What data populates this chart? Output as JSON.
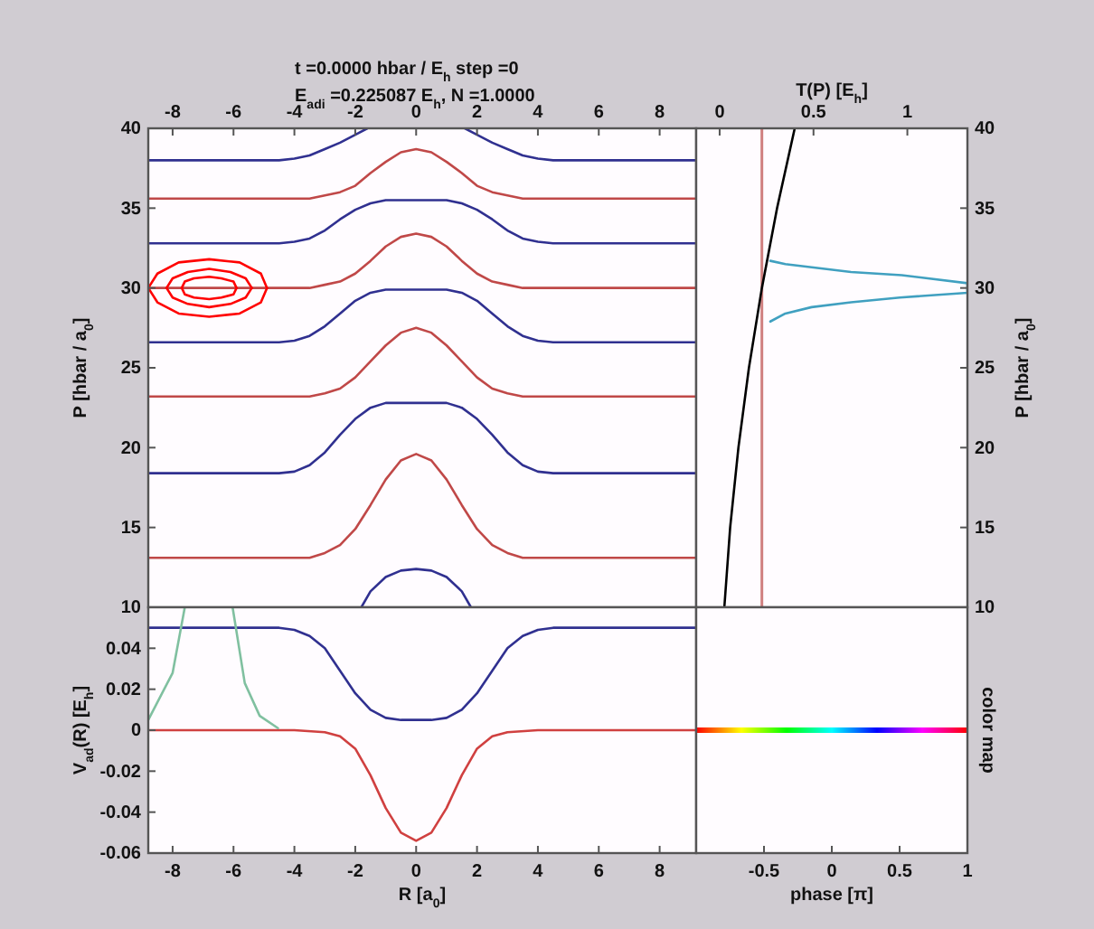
{
  "chart_data": [
    {
      "type": "line",
      "title": "t =0.0000 hbar / E$_{h}$   step =0",
      "subtitle": "E$_{adi}$ =0.225087 E$_{h}$, N =1.0000",
      "ylabel": "P [hbar / a$_{0}$]",
      "xlim": [
        -8.8,
        9.2
      ],
      "xticks": [
        -8,
        -6,
        -4,
        -2,
        0,
        2,
        4,
        6,
        8
      ],
      "ylim": [
        10,
        40
      ],
      "yticks": [
        10,
        15,
        20,
        25,
        30,
        35,
        40
      ],
      "series": [
        {
          "color": "#303090",
          "x": [
            -8.8,
            -4.5,
            -4,
            -3.5,
            -3,
            -2.5,
            -2,
            -1.6,
            0,
            1.6,
            2,
            2.5,
            3,
            3.5,
            4,
            4.5,
            9.2
          ],
          "values": [
            38.0,
            38.0,
            38.1,
            38.3,
            38.7,
            39.1,
            39.6,
            40.0,
            null,
            40.0,
            39.6,
            39.1,
            38.7,
            38.3,
            38.1,
            38.0,
            38.0
          ]
        },
        {
          "color": "#c04848",
          "x": [
            -8.8,
            -3.5,
            -3,
            -2.5,
            -2,
            -1.5,
            -1,
            -0.5,
            0,
            0.5,
            1,
            1.5,
            2,
            2.5,
            3,
            3.5,
            9.2
          ],
          "values": [
            35.6,
            35.6,
            35.8,
            36.0,
            36.4,
            37.2,
            37.9,
            38.5,
            38.7,
            38.5,
            37.9,
            37.2,
            36.4,
            36.0,
            35.8,
            35.6,
            35.6
          ]
        },
        {
          "color": "#303090",
          "x": [
            -8.8,
            -4.5,
            -4,
            -3.5,
            -3,
            -2.5,
            -2,
            -1.5,
            -1,
            0,
            1,
            1.5,
            2,
            2.5,
            3,
            3.5,
            4,
            4.5,
            9.2
          ],
          "values": [
            32.8,
            32.8,
            32.9,
            33.1,
            33.6,
            34.3,
            34.9,
            35.3,
            35.5,
            35.5,
            35.5,
            35.3,
            34.9,
            34.3,
            33.6,
            33.1,
            32.9,
            32.8,
            32.8
          ]
        },
        {
          "color": "#c04848",
          "x": [
            -8.8,
            -3.5,
            -3,
            -2.5,
            -2,
            -1.5,
            -1,
            -0.5,
            0,
            0.5,
            1,
            1.5,
            2,
            2.5,
            3,
            3.5,
            9.2
          ],
          "values": [
            30.0,
            30.0,
            30.2,
            30.4,
            30.9,
            31.7,
            32.6,
            33.2,
            33.4,
            33.2,
            32.6,
            31.7,
            30.9,
            30.4,
            30.2,
            30.0,
            30.0
          ]
        },
        {
          "color": "#303090",
          "x": [
            -8.8,
            -4.5,
            -4,
            -3.5,
            -3,
            -2.5,
            -2,
            -1.5,
            -1,
            0,
            1,
            1.5,
            2,
            2.5,
            3,
            3.5,
            4,
            4.5,
            9.2
          ],
          "values": [
            26.6,
            26.6,
            26.7,
            27.0,
            27.6,
            28.4,
            29.2,
            29.7,
            29.9,
            29.9,
            29.9,
            29.7,
            29.2,
            28.4,
            27.6,
            27.0,
            26.7,
            26.6,
            26.6
          ]
        },
        {
          "color": "#c04848",
          "x": [
            -8.8,
            -3.5,
            -3,
            -2.5,
            -2,
            -1.5,
            -1,
            -0.5,
            0,
            0.5,
            1,
            1.5,
            2,
            2.5,
            3,
            3.5,
            9.2
          ],
          "values": [
            23.2,
            23.2,
            23.4,
            23.7,
            24.4,
            25.4,
            26.4,
            27.2,
            27.5,
            27.2,
            26.4,
            25.4,
            24.4,
            23.7,
            23.4,
            23.2,
            23.2
          ]
        },
        {
          "color": "#303090",
          "x": [
            -8.8,
            -4.5,
            -4,
            -3.5,
            -3,
            -2.5,
            -2,
            -1.5,
            -1,
            0,
            1,
            1.5,
            2,
            2.5,
            3,
            3.5,
            4,
            4.5,
            9.2
          ],
          "values": [
            18.4,
            18.4,
            18.5,
            18.9,
            19.7,
            20.8,
            21.8,
            22.5,
            22.8,
            22.8,
            22.8,
            22.5,
            21.8,
            20.8,
            19.7,
            18.9,
            18.5,
            18.4,
            18.4
          ]
        },
        {
          "color": "#c04848",
          "x": [
            -8.8,
            -3.5,
            -3,
            -2.5,
            -2,
            -1.5,
            -1,
            -0.5,
            0,
            0.5,
            1,
            1.5,
            2,
            2.5,
            3,
            3.5,
            9.2
          ],
          "values": [
            13.1,
            13.1,
            13.4,
            13.9,
            14.9,
            16.4,
            18.0,
            19.2,
            19.6,
            19.2,
            18.0,
            16.4,
            14.9,
            13.9,
            13.4,
            13.1,
            13.1
          ]
        },
        {
          "color": "#303090",
          "x": [
            -1.8,
            -1.5,
            -1,
            -0.5,
            0,
            0.5,
            1,
            1.5,
            1.8
          ],
          "values": [
            10,
            11.0,
            11.9,
            12.3,
            12.4,
            12.3,
            11.9,
            11.0,
            10
          ]
        },
        {
          "color": "#ff0000",
          "x": [
            -8.8,
            -8.5,
            -7.8,
            -6.8,
            -5.8,
            -5.1,
            -4.9
          ],
          "values": [
            30,
            30.9,
            31.6,
            31.8,
            31.6,
            30.9,
            30
          ]
        },
        {
          "color": "#ff0000",
          "x": [
            -8.8,
            -8.5,
            -7.8,
            -6.8,
            -5.8,
            -5.1,
            -4.9
          ],
          "values": [
            30,
            29.1,
            28.4,
            28.2,
            28.4,
            29.1,
            30
          ]
        },
        {
          "color": "#ff0000",
          "x": [
            -8.2,
            -8.0,
            -7.5,
            -6.8,
            -6.1,
            -5.6,
            -5.4
          ],
          "values": [
            30,
            30.6,
            31.0,
            31.2,
            31.0,
            30.6,
            30
          ]
        },
        {
          "color": "#ff0000",
          "x": [
            -8.2,
            -8.0,
            -7.5,
            -6.8,
            -6.1,
            -5.6,
            -5.4
          ],
          "values": [
            30,
            29.4,
            29.0,
            28.8,
            29.0,
            29.4,
            30
          ]
        },
        {
          "color": "#ff0000",
          "x": [
            -7.7,
            -7.6,
            -7.3,
            -6.8,
            -6.4,
            -6.0,
            -5.9
          ],
          "values": [
            30,
            30.4,
            30.6,
            30.7,
            30.6,
            30.4,
            30
          ]
        },
        {
          "color": "#ff0000",
          "x": [
            -7.7,
            -7.6,
            -7.3,
            -6.8,
            -6.4,
            -6.0,
            -5.9
          ],
          "values": [
            30,
            29.6,
            29.4,
            29.3,
            29.4,
            29.6,
            30
          ]
        }
      ]
    },
    {
      "type": "line",
      "xlabel": "T(P) [E$_{h}$]",
      "ylabel": "P [hbar / a$_{0}$]",
      "xlim": [
        -0.125,
        1.32
      ],
      "xticks": [
        0,
        0.5,
        1
      ],
      "ylim": [
        10,
        40
      ],
      "yticks": [
        10,
        15,
        20,
        25,
        30,
        35,
        40
      ],
      "ref_lines": [
        {
          "axis": "x",
          "value": 0.225,
          "color": "#d08080"
        }
      ],
      "series": [
        {
          "color": "#000000",
          "x": [
            0.025,
            0.056,
            0.1,
            0.156,
            0.225,
            0.306,
            0.4
          ],
          "values": [
            10,
            15,
            20,
            25,
            30,
            35,
            40
          ]
        },
        {
          "color": "#40a0c0",
          "x": [
            0.27,
            0.35,
            0.49,
            0.7,
            0.97,
            1.32,
            1.32,
            0.96,
            0.7,
            0.49,
            0.35,
            0.27
          ],
          "values": [
            31.7,
            31.5,
            31.3,
            31.0,
            30.8,
            30.3,
            29.7,
            29.4,
            29.1,
            28.8,
            28.4,
            27.9
          ]
        }
      ]
    },
    {
      "type": "line",
      "xlabel": "R [a$_{0}$]",
      "ylabel": "V$_{ad}$(R) [E$_{h}$]",
      "xlim": [
        -8.8,
        9.2
      ],
      "xticks": [
        -8,
        -6,
        -4,
        -2,
        0,
        2,
        4,
        6,
        8
      ],
      "ylim": [
        -0.06,
        0.06
      ],
      "yticks": [
        -0.06,
        -0.04,
        -0.02,
        0,
        0.02,
        0.04
      ],
      "series": [
        {
          "color": "#303090",
          "x": [
            -8.8,
            -4.5,
            -4,
            -3.5,
            -3,
            -2.5,
            -2,
            -1.5,
            -1,
            -0.5,
            0,
            0.5,
            1,
            1.5,
            2,
            2.5,
            3,
            3.5,
            4,
            4.5,
            9.2
          ],
          "values": [
            0.05,
            0.05,
            0.049,
            0.046,
            0.04,
            0.029,
            0.018,
            0.01,
            0.006,
            0.005,
            0.005,
            0.005,
            0.006,
            0.01,
            0.018,
            0.029,
            0.04,
            0.046,
            0.049,
            0.05,
            0.05
          ]
        },
        {
          "color": "#d04040",
          "x": [
            -8.8,
            -4,
            -3,
            -2.5,
            -2,
            -1.5,
            -1,
            -0.5,
            0,
            0.5,
            1,
            1.5,
            2,
            2.5,
            3,
            4,
            9.2
          ],
          "values": [
            0,
            0,
            -0.001,
            -0.003,
            -0.009,
            -0.022,
            -0.038,
            -0.05,
            -0.054,
            -0.05,
            -0.038,
            -0.022,
            -0.009,
            -0.003,
            -0.001,
            0,
            0
          ]
        },
        {
          "color": "#80c0a0",
          "x": [
            -8.8,
            -8.0,
            -7.6
          ],
          "values": [
            0.005,
            0.028,
            0.06
          ]
        },
        {
          "color": "#80c0a0",
          "x": [
            -6.03,
            -5.63,
            -5.14,
            -4.54
          ],
          "values": [
            0.06,
            0.023,
            0.007,
            0.001
          ]
        }
      ]
    },
    {
      "type": "line",
      "xlabel": "phase [π]",
      "ylabel": "color map",
      "xlim": [
        -1,
        1
      ],
      "xticks": [
        -0.5,
        0,
        0.5,
        1
      ],
      "ylim": [
        -0.06,
        0.06
      ],
      "tick_labels": "x",
      "series": [
        {
          "color": "#ff0000",
          "colors": [
            "#ff0000",
            "#ffff00",
            "#00ff00",
            "#00ffff",
            "#0000ff",
            "#ff00ff",
            "#ff0000"
          ],
          "x": [
            -1,
            -0.667,
            -0.333,
            0,
            0.333,
            0.667,
            1
          ],
          "values": [
            0,
            0,
            0,
            0,
            0,
            0,
            0
          ]
        }
      ]
    }
  ]
}
